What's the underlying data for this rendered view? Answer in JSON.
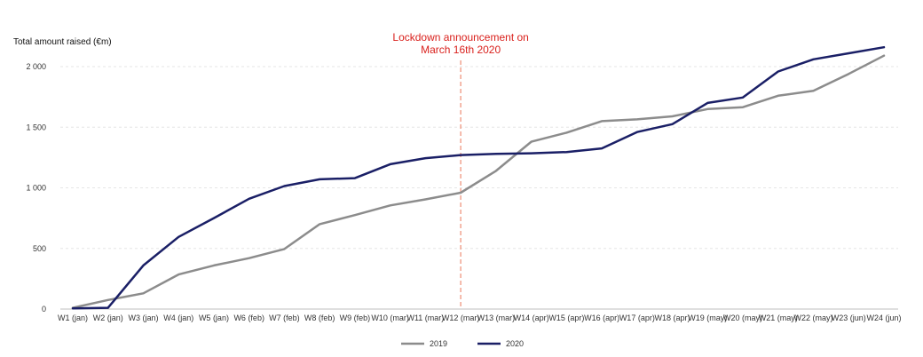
{
  "chart_data": {
    "type": "line",
    "title": "",
    "xlabel": "",
    "ylabel": "Total amount raised (€m)",
    "categories": [
      "W1 (jan)",
      "W2 (jan)",
      "W3 (jan)",
      "W4 (jan)",
      "W5 (jan)",
      "W6 (feb)",
      "W7 (feb)",
      "W8 (feb)",
      "W9 (feb)",
      "W10 (mar)",
      "W11 (mar)",
      "W12 (mar)",
      "W13 (mar)",
      "W14 (apr)",
      "W15 (apr)",
      "W16 (apr)",
      "W17 (apr)",
      "W18 (apr)",
      "W19 (may)",
      "W20 (may)",
      "W21 (may)",
      "W22 (may)",
      "W23 (jun)",
      "W24 (jun)"
    ],
    "y_ticks": [
      0,
      500,
      1000,
      1500,
      2000
    ],
    "y_tick_labels": [
      "0",
      "500",
      "1 000",
      "1 500",
      "2 000"
    ],
    "ylim": [
      0,
      2150
    ],
    "grid": true,
    "legend": "bottom",
    "series": [
      {
        "name": "2019",
        "color": "#8c8c8c",
        "values": [
          10,
          75,
          130,
          285,
          360,
          420,
          495,
          700,
          775,
          855,
          905,
          960,
          1140,
          1380,
          1455,
          1550,
          1565,
          1590,
          1650,
          1665,
          1760,
          1800,
          1940,
          2090
        ]
      },
      {
        "name": "2020",
        "color": "#1a1f66",
        "values": [
          5,
          10,
          360,
          595,
          750,
          910,
          1015,
          1070,
          1080,
          1195,
          1245,
          1270,
          1280,
          1285,
          1295,
          1325,
          1460,
          1525,
          1700,
          1745,
          1960,
          2060,
          2110,
          2160
        ]
      }
    ],
    "annotations": [
      {
        "text_lines": [
          "Lockdown announcement on",
          "March 16th 2020"
        ],
        "x_category": "W12 (mar)",
        "color": "#d9201c",
        "line_color": "#f0a490"
      }
    ]
  }
}
